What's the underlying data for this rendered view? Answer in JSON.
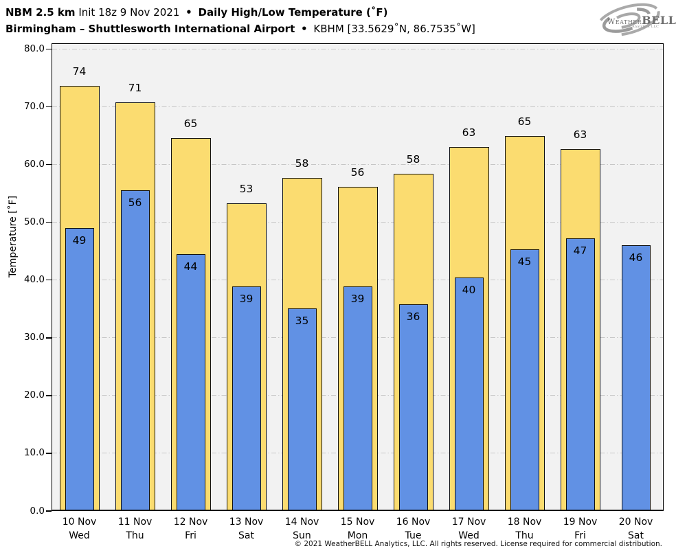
{
  "header": {
    "title_model": "NBM 2.5 km",
    "title_init": "Init 18z 9 Nov 2021",
    "bullet": "•",
    "title_product": "Daily High/Low Temperature (˚F)",
    "subtitle_location": "Birmingham – Shuttlesworth International Airport",
    "subtitle_station": "KBHM [33.5629˚N, 86.7535˚W]"
  },
  "logo": {
    "icon": "hurricane-swirl-icon",
    "brand_weather": "Weather",
    "brand_bell": "BELL",
    "brand_sub": "Analytics LLC",
    "color": "#9b9b9b"
  },
  "footer": {
    "copyright": "© 2021 WeatherBELL Analytics, LLC. All rights reserved. License required for commercial distribution."
  },
  "chart_data": {
    "type": "bar",
    "title": "Daily High/Low Temperature (˚F)",
    "station": "KBHM Birmingham – Shuttlesworth International Airport",
    "ylabel": "Temperature [˚F]",
    "ylim": [
      0,
      81
    ],
    "grid": "horizontal dash-dot, light gray, every 10˚F",
    "legend_position": "none",
    "yticks": [
      {
        "v": 0,
        "label": "0.0"
      },
      {
        "v": 10,
        "label": "10.0"
      },
      {
        "v": 20,
        "label": "20.0"
      },
      {
        "v": 30,
        "label": "30.0"
      },
      {
        "v": 40,
        "label": "40.0"
      },
      {
        "v": 50,
        "label": "50.0"
      },
      {
        "v": 60,
        "label": "60.0"
      },
      {
        "v": 70,
        "label": "70.0"
      },
      {
        "v": 80,
        "label": "80.0"
      }
    ],
    "categories": [
      {
        "date": "10 Nov",
        "day": "Wed"
      },
      {
        "date": "11 Nov",
        "day": "Thu"
      },
      {
        "date": "12 Nov",
        "day": "Fri"
      },
      {
        "date": "13 Nov",
        "day": "Sat"
      },
      {
        "date": "14 Nov",
        "day": "Sun"
      },
      {
        "date": "15 Nov",
        "day": "Mon"
      },
      {
        "date": "16 Nov",
        "day": "Tue"
      },
      {
        "date": "17 Nov",
        "day": "Wed"
      },
      {
        "date": "18 Nov",
        "day": "Thu"
      },
      {
        "date": "19 Nov",
        "day": "Fri"
      },
      {
        "date": "20 Nov",
        "day": "Sat"
      }
    ],
    "series": [
      {
        "name": "Daily High",
        "color": "#FBDC70",
        "values": [
          74,
          71,
          65,
          53,
          58,
          56,
          58,
          63,
          65,
          63,
          null
        ],
        "bar_heights_f": [
          73.6,
          70.8,
          64.6,
          53.3,
          57.7,
          56.1,
          58.4,
          63.0,
          64.9,
          62.7,
          null
        ]
      },
      {
        "name": "Daily Low",
        "color": "#6191E4",
        "values": [
          49,
          56,
          44,
          39,
          35,
          39,
          36,
          40,
          45,
          47,
          46
        ],
        "bar_heights_f": [
          49.0,
          55.5,
          44.5,
          38.9,
          35.1,
          38.9,
          35.8,
          40.4,
          45.3,
          47.2,
          46.0
        ]
      }
    ]
  }
}
